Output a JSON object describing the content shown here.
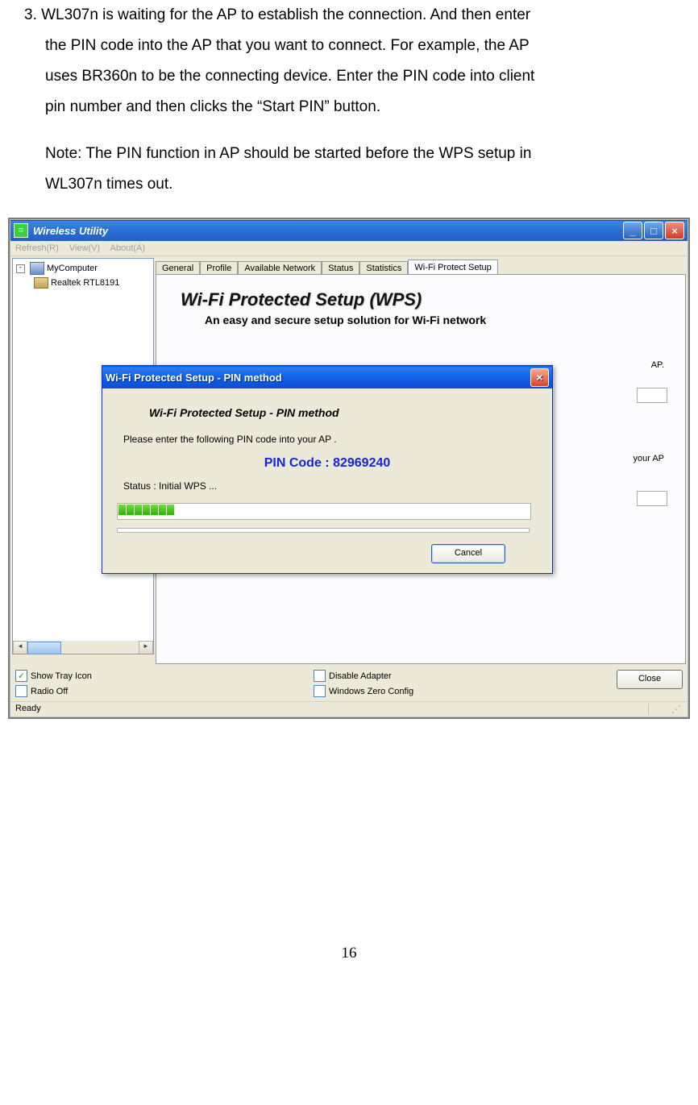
{
  "doc": {
    "para1_a": "3. WL307n is waiting for the AP to establish the connection. And then enter",
    "para1_b": "the PIN code into the AP that you want to connect. For example, the AP",
    "para1_c": "uses BR360n to be the connecting device. Enter the PIN code into client",
    "para1_d": "pin number and then clicks the “Start PIN” button.",
    "para2_a": "Note: The PIN function in AP should be started before the WPS setup in",
    "para2_b": "WL307n times out.",
    "page_num": "16"
  },
  "app": {
    "title": "Wireless Utility",
    "menu": {
      "r": "Refresh(R)",
      "v": "View(V)",
      "a": "About(A)"
    },
    "tree": {
      "root": "MyComputer",
      "child": "Realtek RTL8191"
    },
    "tabs": {
      "general": "General",
      "profile": "Profile",
      "avail": "Available Network",
      "status": "Status",
      "stats": "Statistics",
      "wps": "Wi-Fi Protect Setup"
    },
    "wps_title": "Wi-Fi Protected Setup (WPS)",
    "wps_sub": "An easy and secure setup solution for Wi-Fi network",
    "bg1": "AP.",
    "bg2": "your AP",
    "cb": {
      "tray": "Show Tray Icon",
      "radio": "Radio Off",
      "disable": "Disable Adapter",
      "zero": "Windows Zero Config"
    },
    "close_btn": "Close",
    "status_text": "Ready"
  },
  "dialog": {
    "title": "Wi-Fi Protected Setup - PIN method",
    "heading": "Wi-Fi Protected Setup - PIN method",
    "message": "Please enter the following PIN code into your AP .",
    "pin_label": "PIN Code : ",
    "pin_value": "82969240",
    "status": "Status :  Initial WPS ...",
    "cancel": "Cancel",
    "progress_segments": 7
  }
}
